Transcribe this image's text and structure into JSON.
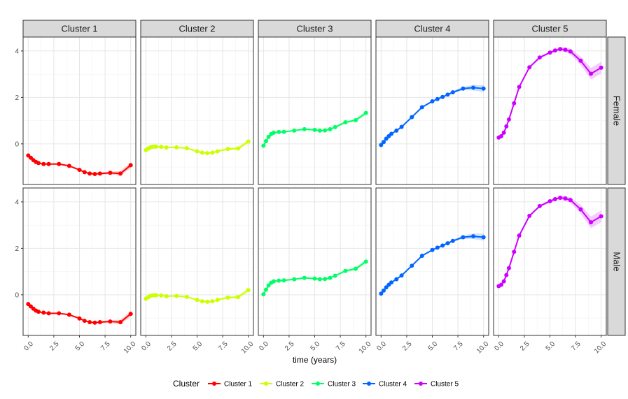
{
  "chart_data": {
    "type": "line",
    "facet_columns": [
      "Cluster 1",
      "Cluster 2",
      "Cluster 3",
      "Cluster 4",
      "Cluster 5"
    ],
    "facet_rows": [
      "Female",
      "Male"
    ],
    "xlabel": "time (years)",
    "ylabel": "",
    "xlim": [
      -0.5,
      10.5
    ],
    "ylim": [
      -1.75,
      4.6
    ],
    "x_ticks": [
      "0.0",
      "2.5",
      "5.0",
      "7.5",
      "10.0"
    ],
    "y_ticks": [
      "0",
      "2",
      "4"
    ],
    "grid": true,
    "legend": {
      "title": "Cluster",
      "position": "bottom",
      "entries": [
        "Cluster 1",
        "Cluster 2",
        "Cluster 3",
        "Cluster 4",
        "Cluster 5"
      ]
    },
    "colors": {
      "Cluster 1": "#ff0000",
      "Cluster 2": "#ccff00",
      "Cluster 3": "#00ff66",
      "Cluster 4": "#0066ff",
      "Cluster 5": "#cc00ff"
    },
    "x": [
      0,
      0.25,
      0.5,
      0.75,
      1,
      1.5,
      2,
      3,
      4,
      5,
      5.5,
      6,
      6.5,
      7,
      8,
      9,
      10
    ],
    "series": [
      {
        "cluster": "Cluster 1",
        "panel": "Female",
        "values": [
          -0.5,
          -0.6,
          -0.7,
          -0.78,
          -0.83,
          -0.87,
          -0.87,
          -0.87,
          -0.95,
          -1.12,
          -1.22,
          -1.28,
          -1.3,
          -1.28,
          -1.25,
          -1.28,
          -0.92
        ],
        "band": [
          0.02,
          0.02,
          0.02,
          0.02,
          0.02,
          0.02,
          0.02,
          0.02,
          0.03,
          0.03,
          0.03,
          0.03,
          0.03,
          0.04,
          0.06,
          0.1,
          0.12
        ]
      },
      {
        "cluster": "Cluster 2",
        "panel": "Female",
        "values": [
          -0.27,
          -0.2,
          -0.14,
          -0.12,
          -0.12,
          -0.13,
          -0.16,
          -0.15,
          -0.19,
          -0.32,
          -0.38,
          -0.4,
          -0.38,
          -0.32,
          -0.22,
          -0.2,
          0.1
        ],
        "band": [
          0.02,
          0.02,
          0.02,
          0.02,
          0.02,
          0.02,
          0.02,
          0.02,
          0.03,
          0.03,
          0.03,
          0.03,
          0.03,
          0.04,
          0.05,
          0.08,
          0.1
        ]
      },
      {
        "cluster": "Cluster 3",
        "panel": "Female",
        "values": [
          -0.08,
          0.12,
          0.3,
          0.42,
          0.48,
          0.51,
          0.52,
          0.57,
          0.63,
          0.6,
          0.57,
          0.58,
          0.63,
          0.72,
          0.93,
          1.02,
          1.33
        ],
        "band": [
          0.02,
          0.02,
          0.02,
          0.02,
          0.02,
          0.02,
          0.02,
          0.02,
          0.03,
          0.03,
          0.03,
          0.03,
          0.03,
          0.04,
          0.05,
          0.07,
          0.1
        ]
      },
      {
        "cluster": "Cluster 4",
        "panel": "Female",
        "values": [
          -0.05,
          0.08,
          0.22,
          0.33,
          0.43,
          0.57,
          0.73,
          1.15,
          1.58,
          1.83,
          1.93,
          2.02,
          2.12,
          2.22,
          2.38,
          2.42,
          2.38
        ],
        "band": [
          0.02,
          0.02,
          0.02,
          0.02,
          0.02,
          0.02,
          0.02,
          0.03,
          0.03,
          0.03,
          0.03,
          0.03,
          0.04,
          0.05,
          0.07,
          0.12,
          0.15
        ]
      },
      {
        "cluster": "Cluster 5",
        "panel": "Female",
        "values": [
          0.27,
          0.33,
          0.48,
          0.75,
          1.05,
          1.75,
          2.45,
          3.3,
          3.72,
          3.93,
          4.02,
          4.08,
          4.05,
          3.98,
          3.58,
          3.02,
          3.28
        ],
        "band": [
          0.03,
          0.03,
          0.04,
          0.04,
          0.05,
          0.05,
          0.05,
          0.05,
          0.05,
          0.06,
          0.07,
          0.08,
          0.1,
          0.12,
          0.18,
          0.25,
          0.25
        ]
      },
      {
        "cluster": "Cluster 1",
        "panel": "Male",
        "values": [
          -0.4,
          -0.5,
          -0.6,
          -0.68,
          -0.73,
          -0.77,
          -0.8,
          -0.8,
          -0.86,
          -1.02,
          -1.12,
          -1.18,
          -1.2,
          -1.18,
          -1.15,
          -1.18,
          -0.82
        ],
        "band": [
          0.02,
          0.02,
          0.02,
          0.02,
          0.02,
          0.02,
          0.02,
          0.02,
          0.03,
          0.03,
          0.03,
          0.03,
          0.03,
          0.04,
          0.06,
          0.1,
          0.12
        ]
      },
      {
        "cluster": "Cluster 2",
        "panel": "Male",
        "values": [
          -0.17,
          -0.1,
          -0.04,
          -0.02,
          -0.02,
          -0.03,
          -0.06,
          -0.05,
          -0.09,
          -0.22,
          -0.28,
          -0.3,
          -0.28,
          -0.22,
          -0.12,
          -0.1,
          0.2
        ],
        "band": [
          0.02,
          0.02,
          0.02,
          0.02,
          0.02,
          0.02,
          0.02,
          0.02,
          0.03,
          0.03,
          0.03,
          0.03,
          0.03,
          0.04,
          0.05,
          0.08,
          0.1
        ]
      },
      {
        "cluster": "Cluster 3",
        "panel": "Male",
        "values": [
          0.02,
          0.22,
          0.4,
          0.52,
          0.58,
          0.61,
          0.62,
          0.67,
          0.73,
          0.7,
          0.67,
          0.68,
          0.73,
          0.82,
          1.03,
          1.12,
          1.43
        ],
        "band": [
          0.02,
          0.02,
          0.02,
          0.02,
          0.02,
          0.02,
          0.02,
          0.02,
          0.03,
          0.03,
          0.03,
          0.03,
          0.03,
          0.04,
          0.05,
          0.07,
          0.1
        ]
      },
      {
        "cluster": "Cluster 4",
        "panel": "Male",
        "values": [
          0.05,
          0.18,
          0.32,
          0.43,
          0.53,
          0.67,
          0.83,
          1.25,
          1.68,
          1.93,
          2.03,
          2.12,
          2.22,
          2.32,
          2.48,
          2.52,
          2.48
        ],
        "band": [
          0.02,
          0.02,
          0.02,
          0.02,
          0.02,
          0.02,
          0.02,
          0.03,
          0.03,
          0.03,
          0.03,
          0.03,
          0.04,
          0.05,
          0.07,
          0.12,
          0.15
        ]
      },
      {
        "cluster": "Cluster 5",
        "panel": "Male",
        "values": [
          0.37,
          0.43,
          0.58,
          0.85,
          1.15,
          1.85,
          2.55,
          3.4,
          3.82,
          4.03,
          4.12,
          4.18,
          4.15,
          4.08,
          3.68,
          3.12,
          3.38
        ],
        "band": [
          0.03,
          0.03,
          0.04,
          0.04,
          0.05,
          0.05,
          0.05,
          0.05,
          0.05,
          0.06,
          0.07,
          0.08,
          0.1,
          0.12,
          0.18,
          0.25,
          0.25
        ]
      }
    ]
  }
}
